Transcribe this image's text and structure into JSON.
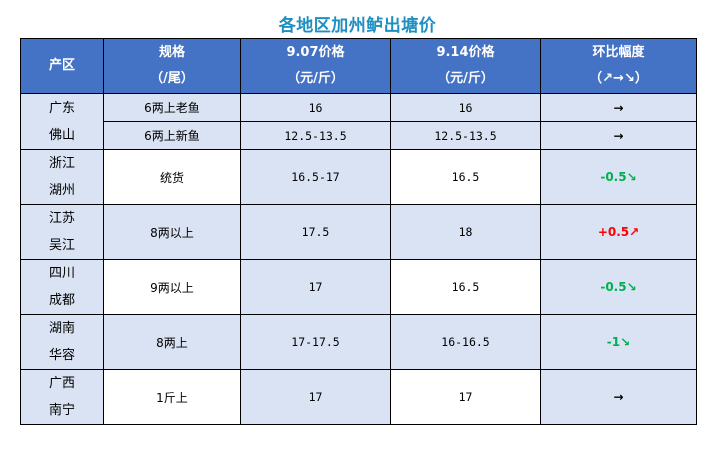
{
  "title": "各地区加州鲈出塘价",
  "colors": {
    "header_bg": "#4472c4",
    "cell_blue": "#dae3f3",
    "title": "#1f8fc1",
    "up": "#ff0000",
    "down": "#00b050",
    "flat": "#000000"
  },
  "headers": [
    {
      "line1": "产区",
      "line2": ""
    },
    {
      "line1": "规格",
      "line2": "（/尾）"
    },
    {
      "line1": "9.07价格",
      "line2": "（元/斤）"
    },
    {
      "line1": "9.14价格",
      "line2": "（元/斤）"
    },
    {
      "line1": "环比幅度",
      "line2": "（↗→↘）"
    }
  ],
  "rows": [
    {
      "region": [
        "广东",
        "佛山"
      ],
      "items": [
        {
          "spec": "6两上老鱼",
          "p1": "16",
          "p2": "16",
          "change": "→",
          "trend": "flat"
        },
        {
          "spec": "6两上新鱼",
          "p1": "12.5-13.5",
          "p2": "12.5-13.5",
          "change": "→",
          "trend": "flat"
        }
      ]
    },
    {
      "region": [
        "浙江",
        "湖州"
      ],
      "items": [
        {
          "spec": "统货",
          "p1": "16.5-17",
          "p2": "16.5",
          "change": "-0.5↘",
          "trend": "down"
        }
      ]
    },
    {
      "region": [
        "江苏",
        "吴江"
      ],
      "items": [
        {
          "spec": "8两以上",
          "p1": "17.5",
          "p2": "18",
          "change": "+0.5↗",
          "trend": "up"
        }
      ]
    },
    {
      "region": [
        "四川",
        "成都"
      ],
      "items": [
        {
          "spec": "9两以上",
          "p1": "17",
          "p2": "16.5",
          "change": "-0.5↘",
          "trend": "down"
        }
      ]
    },
    {
      "region": [
        "湖南",
        "华容"
      ],
      "items": [
        {
          "spec": "8两上",
          "p1": "17-17.5",
          "p2": "16-16.5",
          "change": "-1↘",
          "trend": "down"
        }
      ]
    },
    {
      "region": [
        "广西",
        "南宁"
      ],
      "items": [
        {
          "spec": "1斤上",
          "p1": "17",
          "p2": "17",
          "change": "→",
          "trend": "flat"
        }
      ]
    }
  ]
}
